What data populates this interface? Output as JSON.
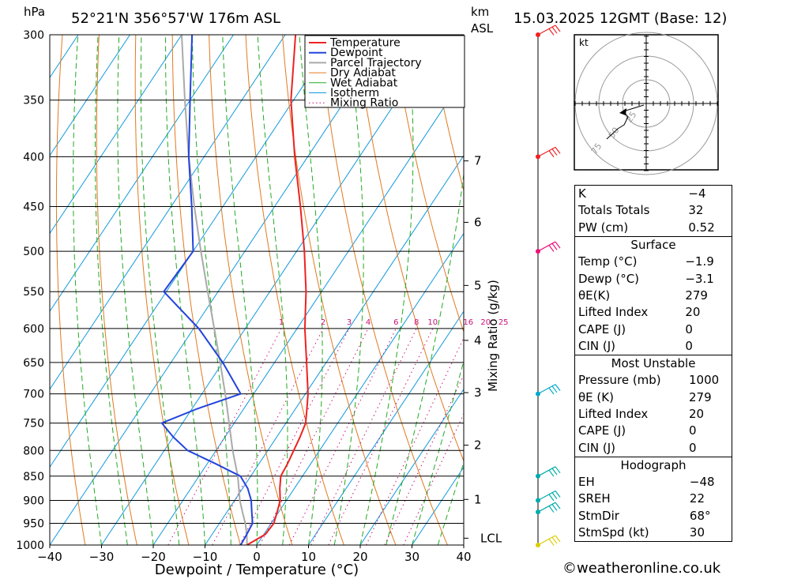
{
  "header": {
    "unit_pressure": "hPa",
    "location": "52°21'N  356°57'W  176m  ASL",
    "unit_height_line1": "km",
    "unit_height_line2": "ASL",
    "datetime": "15.03.2025  12GMT  (Base: 12)"
  },
  "chart_data": {
    "type": "line",
    "title": "52°21'N  356°57'W  176m  ASL",
    "xlabel": "Dewpoint / Temperature (°C)",
    "ylabel": "hPa",
    "y_scale": "log-pressure (skew-T)",
    "xlim": [
      -40,
      40
    ],
    "ylim": [
      1000,
      300
    ],
    "x_ticks": [
      "−40",
      "−30",
      "−20",
      "−10",
      "0",
      "10",
      "20",
      "30",
      "40"
    ],
    "pressure_levels": [
      300,
      350,
      400,
      450,
      500,
      550,
      600,
      650,
      700,
      750,
      800,
      850,
      900,
      950,
      1000
    ],
    "height_axis": {
      "label": "km ASL",
      "ticks": [
        {
          "km": "7",
          "p": 404
        },
        {
          "km": "6",
          "p": 467
        },
        {
          "km": "5",
          "p": 542
        },
        {
          "km": "4",
          "p": 617
        },
        {
          "km": "3",
          "p": 698
        },
        {
          "km": "2",
          "p": 790
        },
        {
          "km": "1",
          "p": 898
        }
      ],
      "lcl_label": "LCL",
      "lcl_p": 984
    },
    "mixing_ratio_axis_label": "Mixing Ratio (g/kg)",
    "mixing_ratio_labels": [
      "1",
      "2",
      "3",
      "4",
      "6",
      "8",
      "10",
      "16",
      "20",
      "25"
    ],
    "mixing_ratio_values": [
      1,
      2,
      3,
      4,
      6,
      8,
      10,
      16,
      20,
      25
    ],
    "legend": [
      "Temperature",
      "Dewpoint",
      "Parcel Trajectory",
      "Dry Adiabat",
      "Wet Adiabat",
      "Isotherm",
      "Mixing Ratio"
    ],
    "legend_position": "top-right",
    "series": [
      {
        "name": "Temperature",
        "color": "#ee2222",
        "points": [
          [
            1000,
            -1.9
          ],
          [
            975,
            0.3
          ],
          [
            950,
            0.5
          ],
          [
            925,
            -0.3
          ],
          [
            900,
            -1.2
          ],
          [
            875,
            -2.8
          ],
          [
            850,
            -4.2
          ],
          [
            825,
            -4.5
          ],
          [
            800,
            -5.0
          ],
          [
            775,
            -5.5
          ],
          [
            750,
            -6.2
          ],
          [
            725,
            -7.8
          ],
          [
            700,
            -9.5
          ],
          [
            650,
            -13.8
          ],
          [
            600,
            -18.5
          ],
          [
            550,
            -23.0
          ],
          [
            500,
            -28.5
          ],
          [
            450,
            -35.0
          ],
          [
            400,
            -42.5
          ],
          [
            350,
            -50.5
          ],
          [
            300,
            -58.0
          ]
        ]
      },
      {
        "name": "Dewpoint",
        "color": "#2244dd",
        "points": [
          [
            1000,
            -3.1
          ],
          [
            975,
            -3.3
          ],
          [
            950,
            -3.6
          ],
          [
            925,
            -5.2
          ],
          [
            900,
            -6.8
          ],
          [
            875,
            -9.0
          ],
          [
            850,
            -12.0
          ],
          [
            825,
            -18.5
          ],
          [
            800,
            -25.5
          ],
          [
            775,
            -30.0
          ],
          [
            750,
            -34.0
          ],
          [
            725,
            -29.0
          ],
          [
            700,
            -22.5
          ],
          [
            650,
            -30.0
          ],
          [
            600,
            -39.0
          ],
          [
            550,
            -50.5
          ],
          [
            500,
            -50.0
          ],
          [
            450,
            -56.0
          ],
          [
            400,
            -63.0
          ],
          [
            350,
            -70.0
          ],
          [
            300,
            -78.0
          ]
        ]
      },
      {
        "name": "Parcel Trajectory",
        "color": "#aaaaaa",
        "points": [
          [
            1000,
            -1.9
          ],
          [
            975,
            -3.3
          ],
          [
            950,
            -5.0
          ],
          [
            925,
            -7.0
          ],
          [
            900,
            -9.0
          ],
          [
            850,
            -12.5
          ],
          [
            800,
            -16.8
          ],
          [
            750,
            -21.0
          ],
          [
            700,
            -25.5
          ],
          [
            650,
            -30.5
          ],
          [
            600,
            -36.0
          ],
          [
            550,
            -42.0
          ],
          [
            500,
            -48.5
          ],
          [
            450,
            -55.5
          ],
          [
            400,
            -63.0
          ],
          [
            350,
            -71.0
          ],
          [
            300,
            -80.0
          ]
        ]
      }
    ],
    "wind_barbs": [
      {
        "p": 300,
        "color": "#ee2222"
      },
      {
        "p": 400,
        "color": "#ee2222"
      },
      {
        "p": 500,
        "color": "#ee1177"
      },
      {
        "p": 700,
        "color": "#00aacc"
      },
      {
        "p": 850,
        "color": "#00aaaa"
      },
      {
        "p": 900,
        "color": "#00aaaa"
      },
      {
        "p": 925,
        "color": "#00aaaa"
      },
      {
        "p": 1000,
        "color": "#ddcc00"
      }
    ],
    "hodograph": {
      "unit": "kt",
      "ring_labels": [
        "25",
        "50",
        "75"
      ]
    }
  },
  "indices": {
    "general": [
      {
        "label": "K",
        "value": "−4"
      },
      {
        "label": "Totals Totals",
        "value": "32"
      },
      {
        "label": "PW (cm)",
        "value": "0.52"
      }
    ],
    "surface": {
      "title": "Surface",
      "rows": [
        {
          "label": "Temp (°C)",
          "value": "−1.9"
        },
        {
          "label": "Dewp (°C)",
          "value": "−3.1"
        },
        {
          "label": "θE(K)",
          "value": "279"
        },
        {
          "label": "Lifted Index",
          "value": "20"
        },
        {
          "label": "CAPE (J)",
          "value": "0"
        },
        {
          "label": "CIN (J)",
          "value": "0"
        }
      ]
    },
    "most_unstable": {
      "title": "Most Unstable",
      "rows": [
        {
          "label": "Pressure (mb)",
          "value": "1000"
        },
        {
          "label": "θE (K)",
          "value": "279"
        },
        {
          "label": "Lifted Index",
          "value": "20"
        },
        {
          "label": "CAPE (J)",
          "value": "0"
        },
        {
          "label": "CIN (J)",
          "value": "0"
        }
      ]
    },
    "hodograph": {
      "title": "Hodograph",
      "rows": [
        {
          "label": "EH",
          "value": "−48"
        },
        {
          "label": "SREH",
          "value": "22"
        },
        {
          "label": "StmDir",
          "value": "68°"
        },
        {
          "label": "StmSpd (kt)",
          "value": "30"
        }
      ]
    }
  },
  "credit": "©weatheronline.co.uk",
  "colors": {
    "temperature": "#ee2222",
    "dewpoint": "#2244dd",
    "parcel": "#aaaaaa",
    "dry_adiabat": "#e07a20",
    "wet_adiabat": "#22aa22",
    "isotherm": "#1199dd",
    "mixing_ratio": "#cc1177"
  }
}
